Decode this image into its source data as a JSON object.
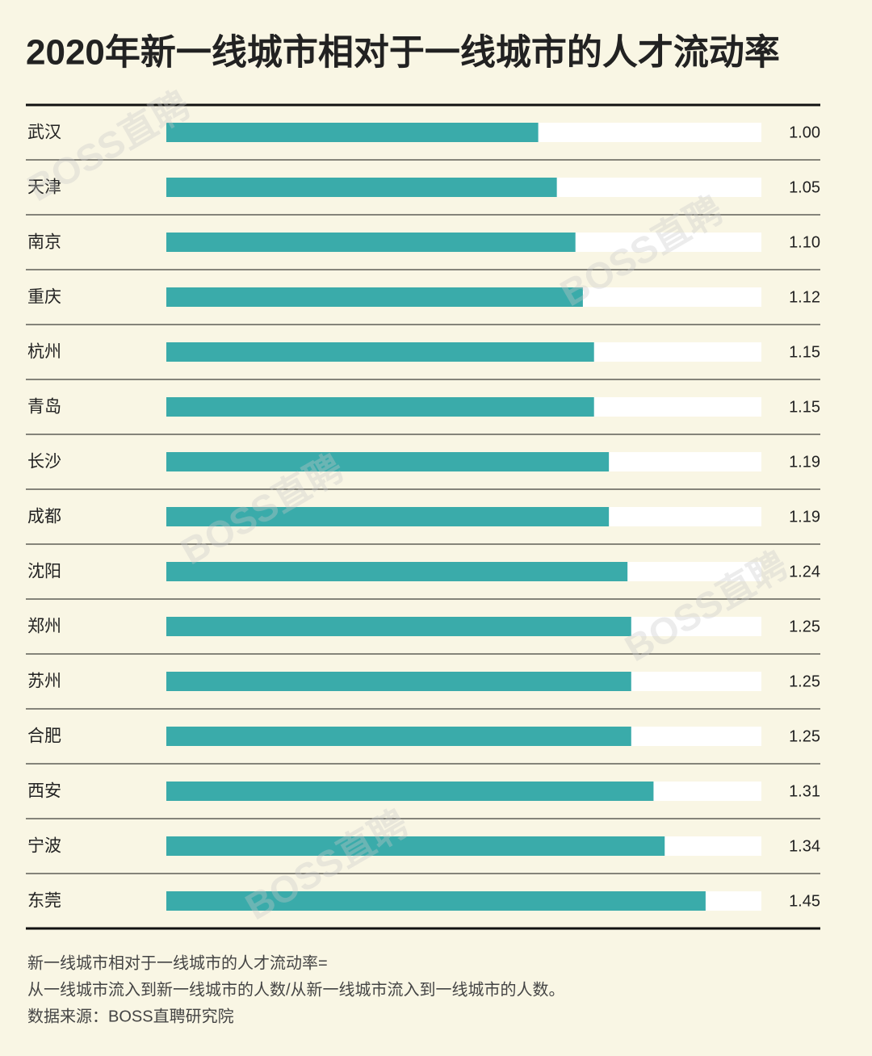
{
  "chart_data": {
    "type": "hbar",
    "title": "2020年新一线城市相对于一线城市的人才流动率",
    "categories": [
      "武汉",
      "天津",
      "南京",
      "重庆",
      "杭州",
      "青岛",
      "长沙",
      "成都",
      "沈阳",
      "郑州",
      "苏州",
      "合肥",
      "西安",
      "宁波",
      "东莞"
    ],
    "values": [
      1.0,
      1.05,
      1.1,
      1.12,
      1.15,
      1.15,
      1.19,
      1.19,
      1.24,
      1.25,
      1.25,
      1.25,
      1.31,
      1.34,
      1.45
    ],
    "value_labels": [
      "1.00",
      "1.05",
      "1.10",
      "1.12",
      "1.15",
      "1.15",
      "1.19",
      "1.19",
      "1.24",
      "1.25",
      "1.25",
      "1.25",
      "1.31",
      "1.34",
      "1.45"
    ],
    "color": "#3aabaa",
    "track_color": "#ffffff",
    "xlim": [
      0,
      1.6
    ],
    "notes": [
      "新一线城市相对于一线城市的人才流动率=",
      "从一线城市流入到新一线城市的人数/从新一线城市流入到一线城市的人数。",
      "数据来源：BOSS直聘研究院"
    ],
    "watermark": "BOSS直聘"
  }
}
